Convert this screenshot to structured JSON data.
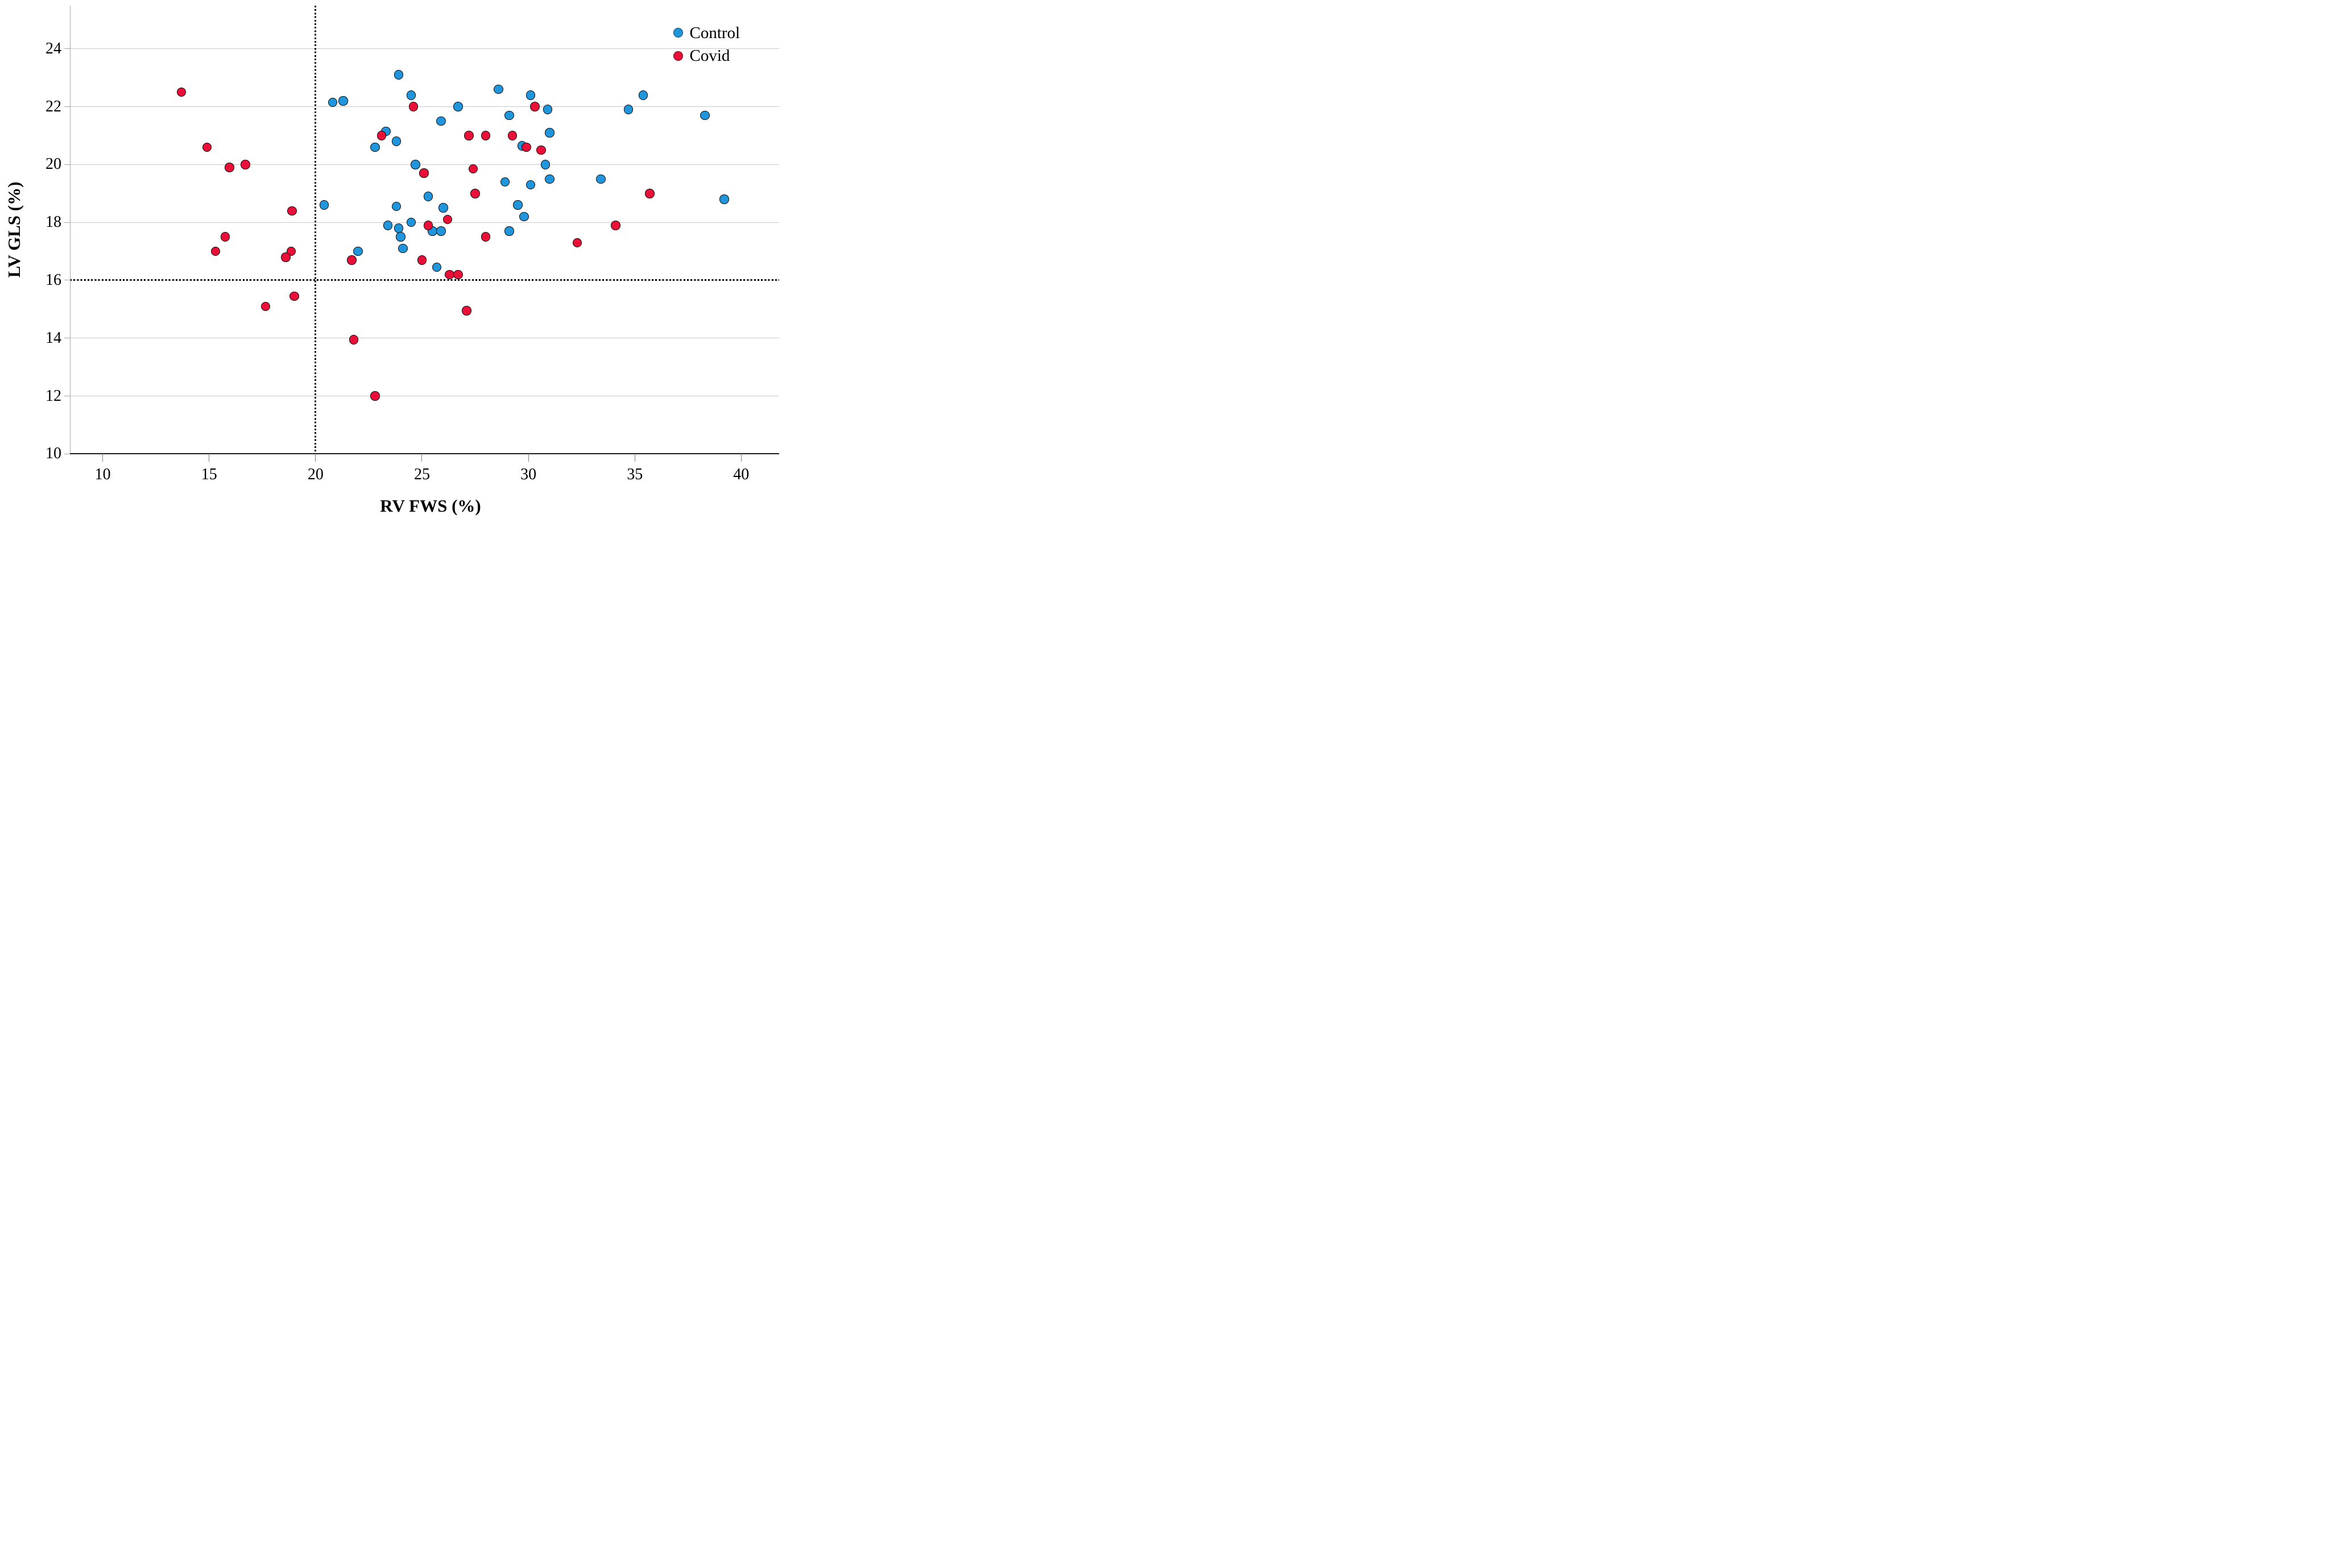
{
  "chart_data": {
    "type": "scatter",
    "title": "",
    "xlabel": "RV FWS (%)",
    "ylabel": "LV GLS (%)",
    "xlim": [
      8.47,
      41.79
    ],
    "ylim": [
      10,
      25.49
    ],
    "x_ticks": [
      "10",
      "15",
      "20",
      "25",
      "30",
      "35",
      "40"
    ],
    "x_tick_values": [
      10,
      15,
      20,
      25,
      30,
      35,
      40
    ],
    "y_ticks": [
      "24",
      "22",
      "20",
      "18",
      "16",
      "14",
      "12",
      "10"
    ],
    "y_tick_values": [
      24,
      22,
      20,
      18,
      16,
      14,
      12,
      10
    ],
    "gridline_values": [
      24,
      22,
      20,
      18,
      16,
      14,
      12
    ],
    "reference_line_x": 20,
    "reference_line_y": 16,
    "grid": "horizontal",
    "legend_position": "top-right",
    "series": [
      {
        "name": "Control",
        "color": "#2095DB",
        "points": [
          [
            23.9,
            23.1
          ],
          [
            28.6,
            22.6
          ],
          [
            24.5,
            22.4
          ],
          [
            30.1,
            22.4
          ],
          [
            35.4,
            22.4
          ],
          [
            20.8,
            22.15
          ],
          [
            21.3,
            22.2
          ],
          [
            26.7,
            22.0
          ],
          [
            30.9,
            21.9
          ],
          [
            34.7,
            21.9
          ],
          [
            29.1,
            21.7
          ],
          [
            38.3,
            21.7
          ],
          [
            25.9,
            21.5
          ],
          [
            23.3,
            21.15
          ],
          [
            31.0,
            21.1
          ],
          [
            23.8,
            20.8
          ],
          [
            22.8,
            20.6
          ],
          [
            29.7,
            20.65
          ],
          [
            24.7,
            20.0
          ],
          [
            30.8,
            20.0
          ],
          [
            33.4,
            19.5
          ],
          [
            31.0,
            19.5
          ],
          [
            28.9,
            19.4
          ],
          [
            30.1,
            19.3
          ],
          [
            39.2,
            18.8
          ],
          [
            25.3,
            18.9
          ],
          [
            20.4,
            18.6
          ],
          [
            26.0,
            18.5
          ],
          [
            23.8,
            18.55
          ],
          [
            29.5,
            18.6
          ],
          [
            24.5,
            18.0
          ],
          [
            29.8,
            18.2
          ],
          [
            23.9,
            17.8
          ],
          [
            23.4,
            17.9
          ],
          [
            24.0,
            17.5
          ],
          [
            25.5,
            17.7
          ],
          [
            25.9,
            17.7
          ],
          [
            29.1,
            17.7
          ],
          [
            24.1,
            17.1
          ],
          [
            22.0,
            17.0
          ],
          [
            25.7,
            16.45
          ]
        ]
      },
      {
        "name": "Covid",
        "color": "#E81038",
        "points": [
          [
            13.7,
            22.5
          ],
          [
            24.6,
            22.0
          ],
          [
            30.3,
            22.0
          ],
          [
            23.1,
            21.0
          ],
          [
            27.2,
            21.0
          ],
          [
            28.0,
            21.0
          ],
          [
            29.25,
            21.0
          ],
          [
            14.9,
            20.6
          ],
          [
            29.9,
            20.6
          ],
          [
            30.6,
            20.5
          ],
          [
            16.7,
            20.0
          ],
          [
            15.95,
            19.9
          ],
          [
            27.4,
            19.85
          ],
          [
            25.1,
            19.7
          ],
          [
            27.5,
            19.0
          ],
          [
            35.7,
            19.0
          ],
          [
            18.9,
            18.4
          ],
          [
            26.2,
            18.1
          ],
          [
            25.3,
            17.9
          ],
          [
            34.1,
            17.9
          ],
          [
            15.75,
            17.5
          ],
          [
            28.0,
            17.5
          ],
          [
            32.3,
            17.3
          ],
          [
            15.3,
            17.0
          ],
          [
            18.85,
            17.0
          ],
          [
            18.6,
            16.8
          ],
          [
            21.7,
            16.7
          ],
          [
            25.0,
            16.7
          ],
          [
            26.3,
            16.2
          ],
          [
            26.7,
            16.2
          ],
          [
            19.0,
            15.45
          ],
          [
            17.65,
            15.1
          ],
          [
            27.1,
            14.95
          ],
          [
            21.8,
            13.95
          ],
          [
            22.8,
            12.0
          ]
        ]
      }
    ]
  }
}
